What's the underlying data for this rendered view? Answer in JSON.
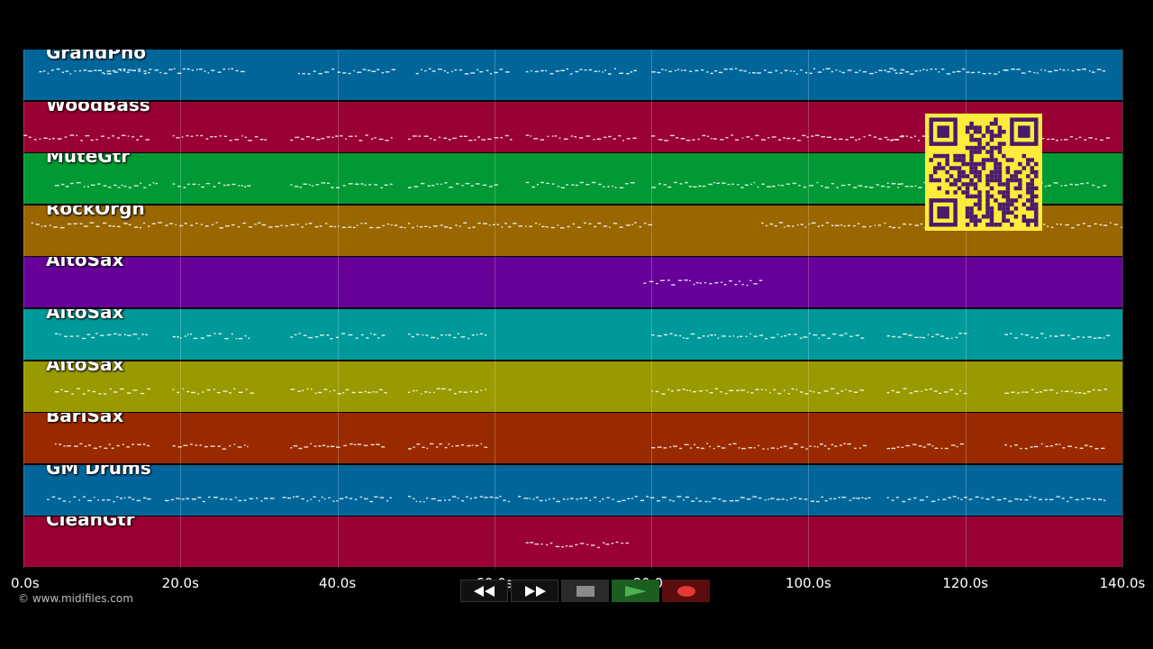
{
  "tracks": [
    {
      "name": "GrandPno",
      "color": "#00669a",
      "noteY": 0.42
    },
    {
      "name": "WoodBass",
      "color": "#990033",
      "noteY": 0.7
    },
    {
      "name": "MuteGtr",
      "color": "#009933",
      "noteY": 0.62
    },
    {
      "name": "RockOrgn",
      "color": "#996600",
      "noteY": 0.38
    },
    {
      "name": "AltoSax",
      "color": "#660099",
      "noteY": 0.5
    },
    {
      "name": "AltoSax",
      "color": "#009999",
      "noteY": 0.52
    },
    {
      "name": "AltoSax",
      "color": "#999900",
      "noteY": 0.58
    },
    {
      "name": "BariSax",
      "color": "#992a00",
      "noteY": 0.65
    },
    {
      "name": "GM Drums",
      "color": "#00669a",
      "noteY": 0.66
    },
    {
      "name": "CleanGtr",
      "color": "#990033",
      "noteY": 0.55
    }
  ],
  "timeline": {
    "max_seconds": 140,
    "ticks": [
      "0.0s",
      "20.0s",
      "40.0s",
      "60.0s",
      "80.0s",
      "100.0s",
      "120.0s",
      "140.0s"
    ]
  },
  "copyright": "© www.midifiles.com",
  "transport": {
    "rewind": "rewind-icon",
    "fast_forward": "fast-forward-icon",
    "stop": "stop-icon",
    "play": "play-icon",
    "record": "record-icon"
  },
  "qr_colors": {
    "bg": "#ffeb3b",
    "fg": "#4a1a6b"
  }
}
